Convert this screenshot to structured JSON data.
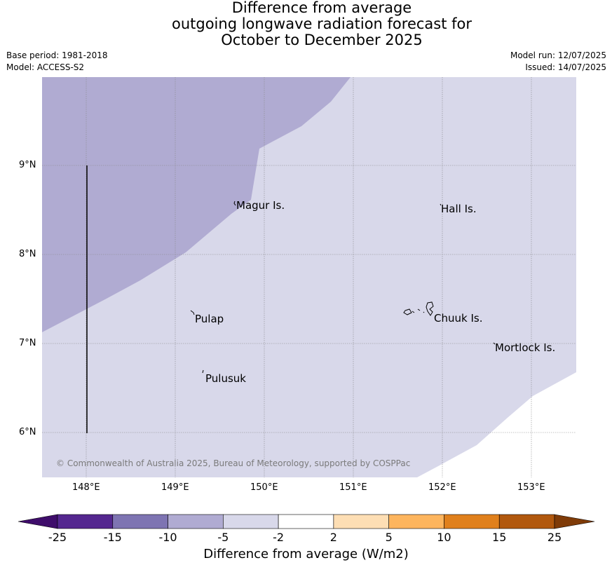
{
  "title": {
    "line1": "Difference from average",
    "line2": "outgoing longwave radiation forecast for",
    "line3": "October to December 2025"
  },
  "meta": {
    "base_period": "Base period: 1981-2018",
    "model": "Model: ACCESS-S2",
    "model_run": "Model run: 12/07/2025",
    "issued": "Issued: 14/07/2025"
  },
  "map": {
    "lon_ticks": [
      "148°E",
      "149°E",
      "150°E",
      "151°E",
      "152°E",
      "153°E"
    ],
    "lat_ticks": [
      "9°N",
      "8°N",
      "7°N",
      "6°N"
    ],
    "places": [
      {
        "name": "Magur Is."
      },
      {
        "name": "Hall Is."
      },
      {
        "name": "Pulap"
      },
      {
        "name": "Chuuk Is."
      },
      {
        "name": "Mortlock Is."
      },
      {
        "name": "Pulusuk"
      }
    ],
    "copyright": "© Commonwealth of Australia 2025, Bureau of Meteorology, supported by COSPPac",
    "region_colors": {
      "minus15_to_minus10": "#b0abd2",
      "minus10_to_minus5": "#d8d8ea",
      "minus2_to_2": "#ffffff"
    }
  },
  "colorbar": {
    "title": "Difference from average (W/m2)",
    "tick_labels": [
      "-25",
      "-15",
      "-10",
      "-5",
      "-2",
      "2",
      "5",
      "10",
      "15",
      "25"
    ],
    "colors": [
      "#3f0d6b",
      "#54278f",
      "#7e74b2",
      "#b0abd2",
      "#d8d8ea",
      "#ffffff",
      "#fddeb4",
      "#fdb55e",
      "#e0801c",
      "#b1580e",
      "#7f3b08"
    ]
  }
}
